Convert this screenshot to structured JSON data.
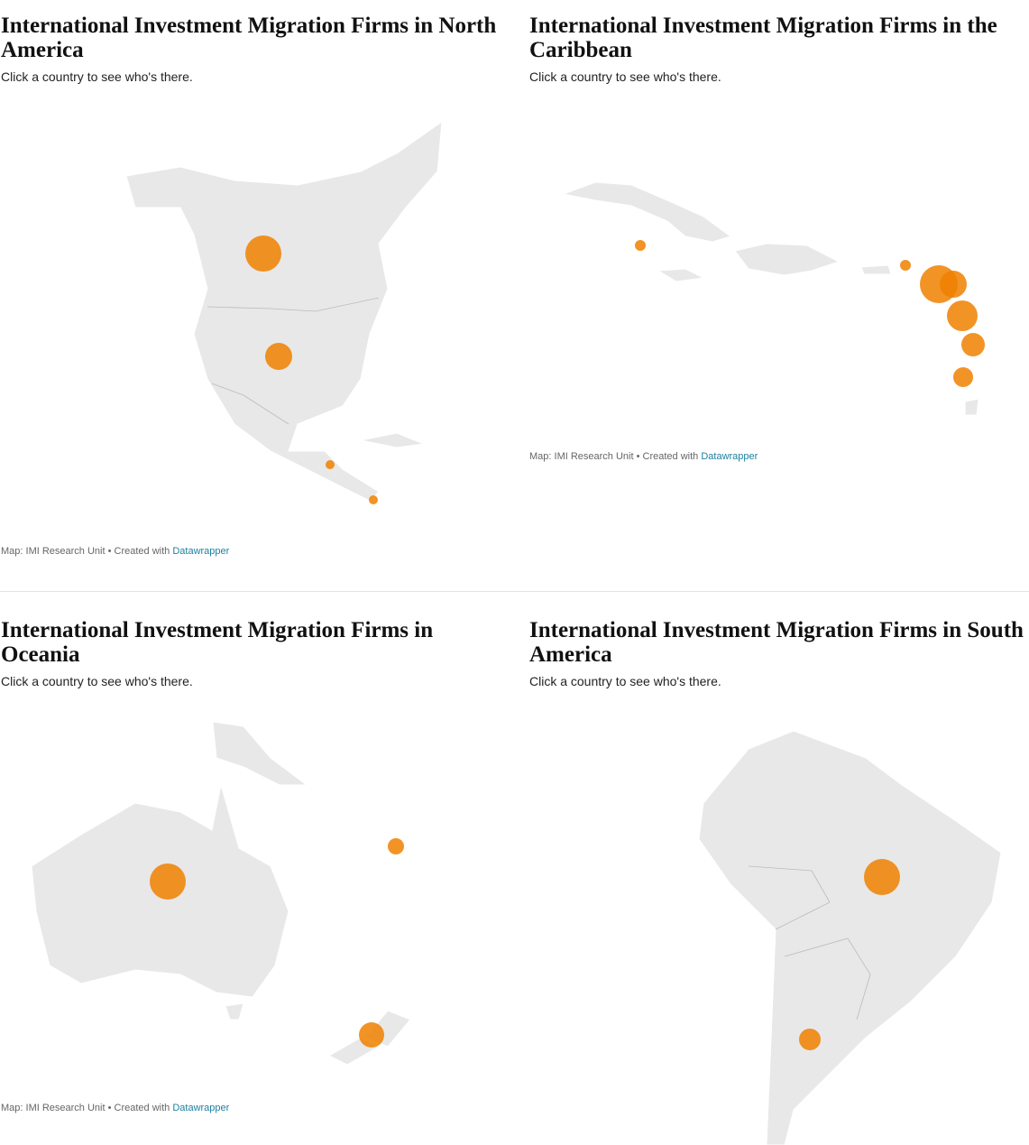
{
  "panels": [
    {
      "title": "International Investment Migration Firms in North America",
      "subtitle": "Click a country to see who's there.",
      "source": "Map: IMI Research Unit • Created with",
      "link": "Datawrapper"
    },
    {
      "title": "International Investment Migration Firms in the Caribbean",
      "subtitle": "Click a country to see who's there.",
      "source": "Map: IMI Research Unit • Created with",
      "link": "Datawrapper"
    },
    {
      "title": "International Investment Migration Firms in Oceania",
      "subtitle": "Click a country to see who's there.",
      "source": "Map: IMI Research Unit • Created with",
      "link": "Datawrapper"
    },
    {
      "title": "International Investment Migration Firms in South America",
      "subtitle": "Click a country to see who's there."
    }
  ]
}
